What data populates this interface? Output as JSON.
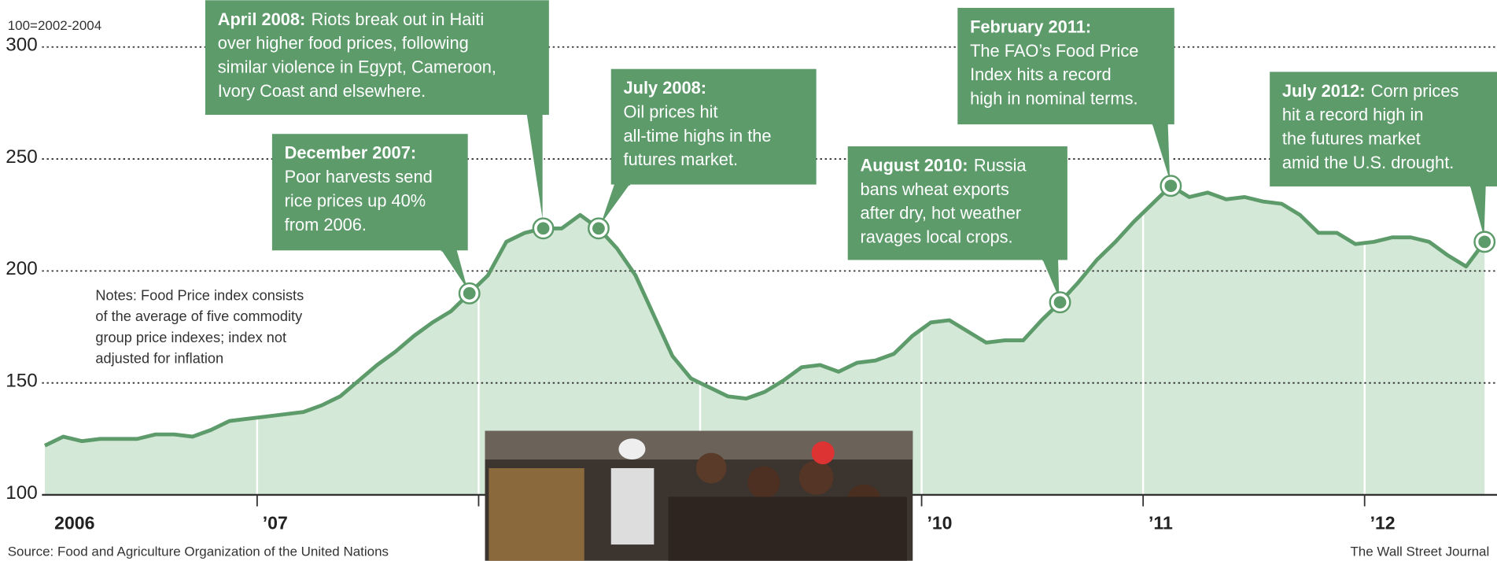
{
  "chart_data": {
    "type": "area",
    "unit_note": "100=2002-2004",
    "categories": [
      "2006",
      null,
      null,
      null,
      null,
      null,
      null,
      null,
      null,
      null,
      null,
      null,
      "’07",
      null,
      null,
      null,
      null,
      null,
      null,
      null,
      null,
      null,
      null,
      null,
      null,
      null,
      null,
      null,
      null,
      null,
      null,
      null,
      null,
      null,
      null,
      null,
      null,
      null,
      null,
      null,
      null,
      null,
      null,
      null,
      null,
      null,
      null,
      null,
      "’10",
      null,
      null,
      null,
      null,
      null,
      null,
      null,
      null,
      null,
      null,
      null,
      "’11",
      null,
      null,
      null,
      null,
      null,
      null,
      null,
      null,
      null,
      null,
      null,
      "’12",
      null,
      null,
      null,
      null,
      null,
      null
    ],
    "values": [
      122,
      126,
      124,
      125,
      125,
      125,
      127,
      127,
      126,
      129,
      133,
      134,
      135,
      136,
      137,
      140,
      144,
      151,
      158,
      164,
      171,
      177,
      182,
      190,
      198,
      213,
      217,
      219,
      219,
      225,
      219,
      210,
      198,
      180,
      162,
      152,
      148,
      144,
      143,
      146,
      151,
      157,
      158,
      155,
      159,
      160,
      163,
      171,
      177,
      178,
      173,
      168,
      169,
      169,
      178,
      186,
      195,
      205,
      213,
      222,
      230,
      238,
      233,
      235,
      232,
      233,
      231,
      230,
      225,
      217,
      217,
      212,
      213,
      215,
      215,
      213,
      207,
      202,
      213
    ],
    "color": "#5d9b6b",
    "ylim": [
      100,
      300
    ],
    "yticks": [
      100,
      150,
      200,
      250,
      300
    ],
    "grid": true,
    "notes": [
      "Notes: Food Price index consists",
      "of the average of five commodity",
      "group price indexes; index not",
      "adjusted for inflation"
    ],
    "annotations": [
      {
        "title": "December 2007:",
        "lines": [
          "Poor harvests send",
          "rice prices up 40%",
          "from 2006."
        ]
      },
      {
        "title": "April 2008:",
        "lines": [
          "Riots break out in Haiti",
          "over higher food prices, following",
          "similar violence in Egypt, Cameroon,",
          "Ivory Coast and elsewhere."
        ]
      },
      {
        "title": "July 2008:",
        "lines": [
          "Oil prices hit",
          "all-time highs in the",
          "futures market."
        ]
      },
      {
        "title": "August 2010:",
        "lines": [
          "Russia",
          "bans wheat exports",
          "after dry, hot weather",
          "ravages local crops."
        ]
      },
      {
        "title": "February 2011:",
        "lines": [
          "The FAO’s Food Price",
          "Index hits a record",
          "high in nominal terms."
        ]
      },
      {
        "title": "July 2012:",
        "lines": [
          "Corn prices",
          "hit a record high in",
          "the futures market",
          "amid the U.S. drought."
        ]
      }
    ],
    "source": "Source: Food and Agriculture Organization of the United Nations",
    "credit": "The Wall Street Journal"
  }
}
